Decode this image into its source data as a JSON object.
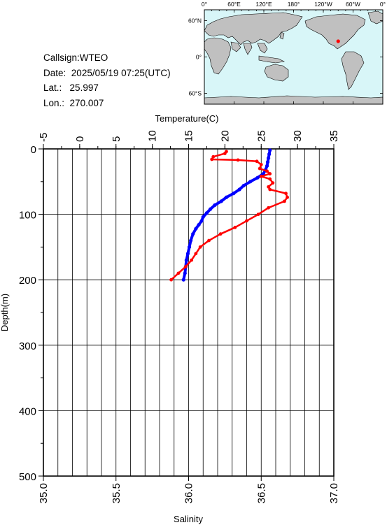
{
  "header": {
    "callsign_label": "Callsign:",
    "callsign": "WTEO",
    "date_label": "Date:",
    "date": "2025/05/19 07:25(UTC)",
    "lat_label": "Lat.:",
    "lat": "25.997",
    "lon_label": "Lon.:",
    "lon": "270.007"
  },
  "map": {
    "lon_labels": [
      "0°",
      "60°E",
      "120°E",
      "180°",
      "120°W",
      "60°W",
      "0°"
    ],
    "lat_labels": [
      "60°N",
      "0°",
      "60°S"
    ],
    "ocean_color": "#d8f6f8",
    "land_color": "#c0c0c0",
    "marker_color": "#ff0000",
    "marker_lon": 270.007,
    "marker_lat": 25.997
  },
  "chart_data": {
    "type": "line",
    "title": "",
    "xlabel_top": "Temperature(C)",
    "xlabel_bottom": "Salinity",
    "ylabel": "Depth(m)",
    "temperature_range": [
      -5,
      35
    ],
    "temperature_ticks": [
      "-5",
      "0",
      "5",
      "10",
      "15",
      "20",
      "25",
      "30",
      "35"
    ],
    "salinity_range": [
      35.0,
      37.0
    ],
    "salinity_ticks": [
      "35.0",
      "35.5",
      "36.0",
      "36.5",
      "37.0"
    ],
    "depth_range": [
      0,
      500
    ],
    "depth_ticks": [
      "0",
      "100",
      "200",
      "300",
      "400",
      "500"
    ],
    "grid": true,
    "series": [
      {
        "color": "#0000ff",
        "axis": "temperature",
        "points": [
          [
            26.2,
            2
          ],
          [
            26.1,
            8
          ],
          [
            26.0,
            14
          ],
          [
            25.9,
            20
          ],
          [
            25.8,
            26
          ],
          [
            25.6,
            32
          ],
          [
            25.3,
            38
          ],
          [
            24.5,
            44
          ],
          [
            23.5,
            50
          ],
          [
            22.6,
            56
          ],
          [
            22.0,
            62
          ],
          [
            21.2,
            68
          ],
          [
            20.2,
            74
          ],
          [
            19.5,
            80
          ],
          [
            18.6,
            86
          ],
          [
            18.0,
            92
          ],
          [
            17.5,
            98
          ],
          [
            17.0,
            104
          ],
          [
            16.8,
            110
          ],
          [
            16.4,
            116
          ],
          [
            16.0,
            122
          ],
          [
            15.6,
            130
          ],
          [
            15.3,
            140
          ],
          [
            15.1,
            150
          ],
          [
            14.9,
            160
          ],
          [
            14.7,
            170
          ],
          [
            14.6,
            180
          ],
          [
            14.5,
            190
          ],
          [
            14.3,
            200
          ]
        ]
      },
      {
        "color": "#ff0000",
        "axis": "salinity",
        "points": [
          [
            36.26,
            4
          ],
          [
            36.25,
            7
          ],
          [
            36.17,
            12
          ],
          [
            36.16,
            16
          ],
          [
            36.34,
            17
          ],
          [
            36.47,
            19
          ],
          [
            36.5,
            24
          ],
          [
            36.49,
            30
          ],
          [
            36.54,
            34
          ],
          [
            36.56,
            38
          ],
          [
            36.5,
            42
          ],
          [
            36.56,
            46
          ],
          [
            36.58,
            52
          ],
          [
            36.55,
            58
          ],
          [
            36.56,
            62
          ],
          [
            36.67,
            68
          ],
          [
            36.68,
            74
          ],
          [
            36.66,
            80
          ],
          [
            36.55,
            90
          ],
          [
            36.48,
            100
          ],
          [
            36.4,
            110
          ],
          [
            36.32,
            120
          ],
          [
            36.22,
            130
          ],
          [
            36.14,
            140
          ],
          [
            36.08,
            150
          ],
          [
            36.05,
            160
          ],
          [
            36.02,
            170
          ],
          [
            35.98,
            180
          ],
          [
            35.93,
            190
          ],
          [
            35.88,
            200
          ]
        ]
      }
    ]
  }
}
